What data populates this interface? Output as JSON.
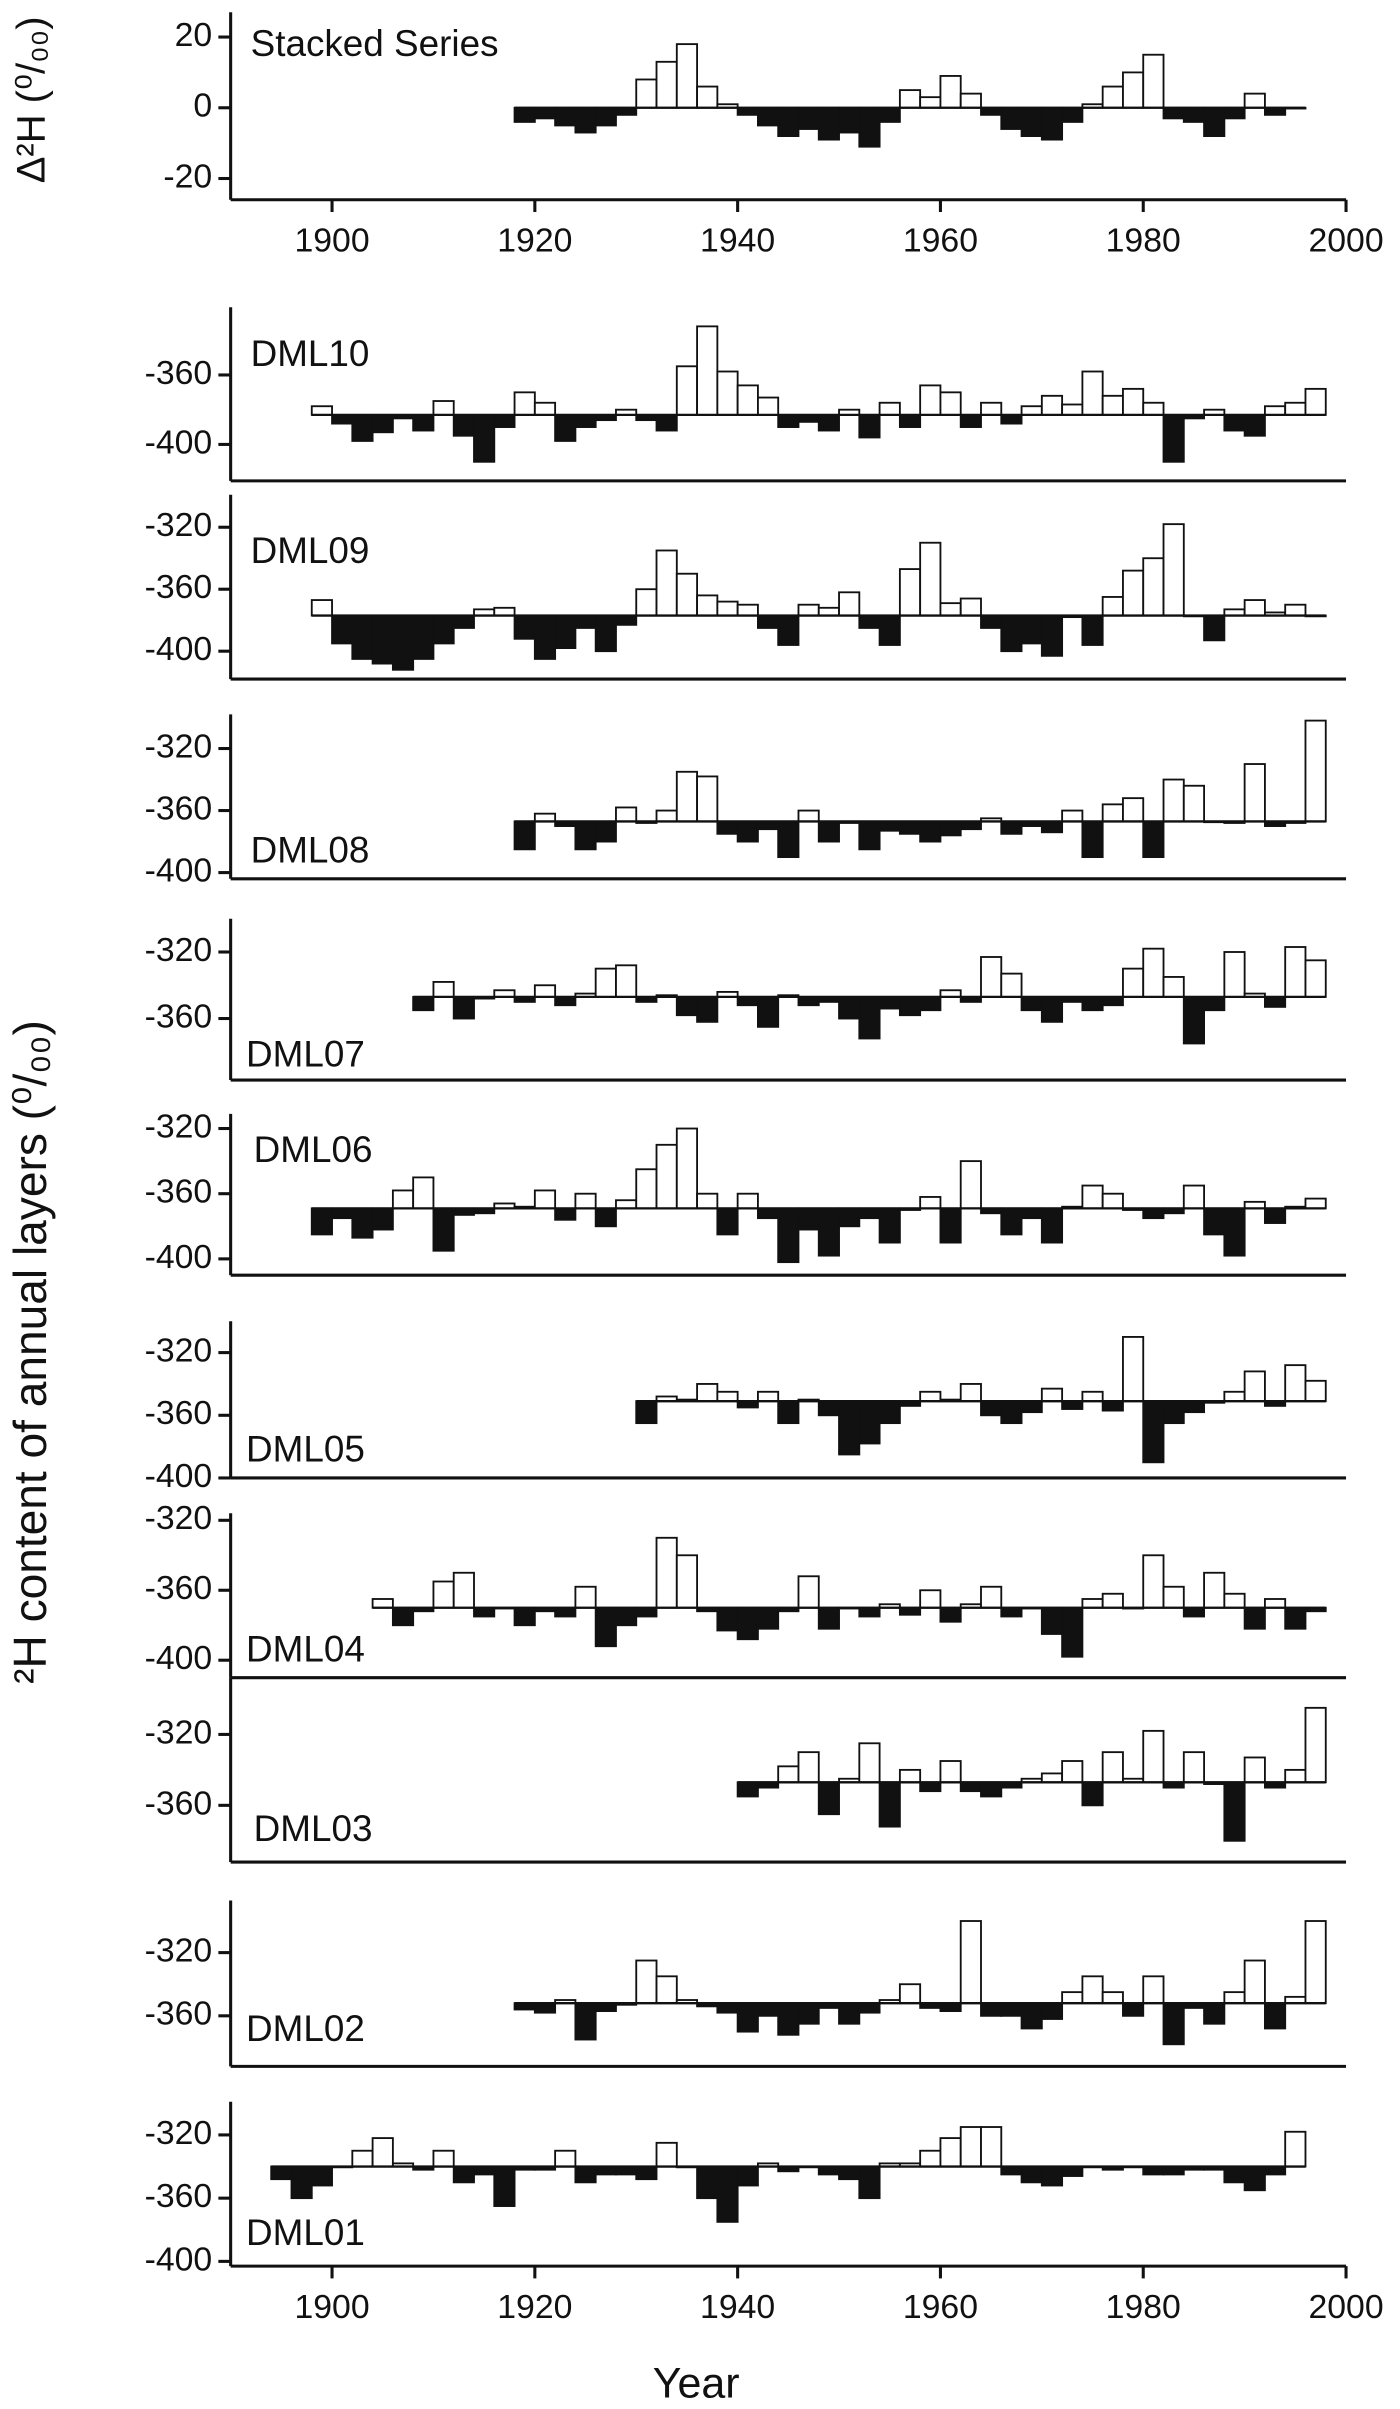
{
  "ylabel": "²H content of annual layers  (⁰/₀₀)",
  "chart_data": [
    {
      "type": "bar",
      "title": "Stacked Series",
      "ylabel": "Δ²H (⁰/₀₀)",
      "baseline": 0,
      "xlim": [
        1890,
        2000
      ],
      "ylim": [
        -26,
        27
      ],
      "yticks": [
        -20,
        0,
        20
      ],
      "xticks": [
        1900,
        1920,
        1940,
        1960,
        1980,
        2000
      ],
      "x": [
        1918,
        1920,
        1922,
        1924,
        1926,
        1928,
        1930,
        1932,
        1934,
        1936,
        1938,
        1940,
        1942,
        1944,
        1946,
        1948,
        1950,
        1952,
        1954,
        1956,
        1958,
        1960,
        1962,
        1964,
        1966,
        1968,
        1970,
        1972,
        1974,
        1976,
        1978,
        1980,
        1982,
        1984,
        1986,
        1988,
        1990,
        1992,
        1994
      ],
      "values": [
        -4,
        -3,
        -5,
        -7,
        -5,
        -2,
        8,
        13,
        18,
        6,
        1,
        -2,
        -5,
        -8,
        -6,
        -9,
        -7,
        -11,
        -4,
        5,
        3,
        9,
        4,
        -2,
        -6,
        -8,
        -9,
        -4,
        1,
        6,
        10,
        15,
        -3,
        -4,
        -8,
        -3,
        4,
        -2,
        0
      ]
    },
    {
      "type": "bar",
      "title": "DML10",
      "baseline": -383,
      "xlim": [
        1890,
        2000
      ],
      "ylim": [
        -421,
        -321
      ],
      "yticks": [
        -360,
        -400
      ],
      "x": [
        1898,
        1900,
        1902,
        1904,
        1906,
        1908,
        1910,
        1912,
        1914,
        1916,
        1918,
        1920,
        1922,
        1924,
        1926,
        1928,
        1930,
        1932,
        1934,
        1936,
        1938,
        1940,
        1942,
        1944,
        1946,
        1948,
        1950,
        1952,
        1954,
        1956,
        1958,
        1960,
        1962,
        1964,
        1966,
        1968,
        1970,
        1972,
        1974,
        1976,
        1978,
        1980,
        1982,
        1984,
        1986,
        1988,
        1990,
        1992,
        1994,
        1996
      ],
      "values": [
        -378,
        -388,
        -398,
        -393,
        -385,
        -392,
        -375,
        -395,
        -410,
        -390,
        -370,
        -376,
        -398,
        -390,
        -386,
        -380,
        -386,
        -392,
        -355,
        -332,
        -358,
        -366,
        -373,
        -390,
        -387,
        -392,
        -380,
        -396,
        -376,
        -390,
        -366,
        -370,
        -390,
        -376,
        -388,
        -378,
        -372,
        -377,
        -358,
        -372,
        -368,
        -376,
        -410,
        -385,
        -380,
        -392,
        -395,
        -378,
        -376,
        -368
      ]
    },
    {
      "type": "bar",
      "title": "DML09",
      "baseline": -377,
      "xlim": [
        1890,
        2000
      ],
      "ylim": [
        -418,
        -299
      ],
      "yticks": [
        -320,
        -360,
        -400
      ],
      "x": [
        1898,
        1900,
        1902,
        1904,
        1906,
        1908,
        1910,
        1912,
        1914,
        1916,
        1918,
        1920,
        1922,
        1924,
        1926,
        1928,
        1930,
        1932,
        1934,
        1936,
        1938,
        1940,
        1942,
        1944,
        1946,
        1948,
        1950,
        1952,
        1954,
        1956,
        1958,
        1960,
        1962,
        1964,
        1966,
        1968,
        1970,
        1972,
        1974,
        1976,
        1978,
        1980,
        1982,
        1984,
        1986,
        1988,
        1990,
        1992,
        1994,
        1996
      ],
      "values": [
        -367,
        -395,
        -405,
        -408,
        -412,
        -405,
        -395,
        -385,
        -373,
        -372,
        -392,
        -405,
        -398,
        -385,
        -400,
        -383,
        -360,
        -335,
        -350,
        -364,
        -368,
        -370,
        -385,
        -396,
        -370,
        -372,
        -362,
        -385,
        -396,
        -347,
        -330,
        -369,
        -366,
        -385,
        -400,
        -395,
        -403,
        -378,
        -396,
        -365,
        -348,
        -340,
        -318,
        -377,
        -393,
        -373,
        -367,
        -375,
        -370,
        -377
      ]
    },
    {
      "type": "bar",
      "title": "DML08",
      "baseline": -367,
      "xlim": [
        1890,
        2000
      ],
      "ylim": [
        -404,
        -298
      ],
      "yticks": [
        -320,
        -360,
        -400
      ],
      "x": [
        1918,
        1920,
        1922,
        1924,
        1926,
        1928,
        1930,
        1932,
        1934,
        1936,
        1938,
        1940,
        1942,
        1944,
        1946,
        1948,
        1950,
        1952,
        1954,
        1956,
        1958,
        1960,
        1962,
        1964,
        1966,
        1968,
        1970,
        1972,
        1974,
        1976,
        1978,
        1980,
        1982,
        1984,
        1986,
        1988,
        1990,
        1992,
        1994,
        1996
      ],
      "values": [
        -385,
        -362,
        -370,
        -385,
        -380,
        -358,
        -368,
        -360,
        -335,
        -338,
        -375,
        -380,
        -372,
        -390,
        -360,
        -380,
        -368,
        -385,
        -373,
        -375,
        -380,
        -376,
        -372,
        -365,
        -375,
        -370,
        -374,
        -360,
        -390,
        -356,
        -352,
        -390,
        -340,
        -344,
        -367,
        -368,
        -330,
        -370,
        -368,
        -302
      ]
    },
    {
      "type": "bar",
      "title": "DML07",
      "baseline": -347,
      "xlim": [
        1890,
        2000
      ],
      "ylim": [
        -397,
        -300
      ],
      "yticks": [
        -320,
        -360
      ],
      "x": [
        1908,
        1910,
        1912,
        1914,
        1916,
        1918,
        1920,
        1922,
        1924,
        1926,
        1928,
        1930,
        1932,
        1934,
        1936,
        1938,
        1940,
        1942,
        1944,
        1946,
        1948,
        1950,
        1952,
        1954,
        1956,
        1958,
        1960,
        1962,
        1964,
        1966,
        1968,
        1970,
        1972,
        1974,
        1976,
        1978,
        1980,
        1982,
        1984,
        1986,
        1988,
        1990,
        1992,
        1994,
        1996
      ],
      "values": [
        -355,
        -338,
        -360,
        -348,
        -343,
        -350,
        -340,
        -352,
        -345,
        -330,
        -328,
        -350,
        -346,
        -358,
        -362,
        -344,
        -352,
        -365,
        -346,
        -352,
        -350,
        -360,
        -372,
        -354,
        -358,
        -355,
        -343,
        -350,
        -323,
        -333,
        -355,
        -362,
        -350,
        -355,
        -352,
        -330,
        -318,
        -335,
        -375,
        -355,
        -320,
        -345,
        -353,
        -317,
        -325
      ]
    },
    {
      "type": "bar",
      "title": "DML06",
      "baseline": -369,
      "xlim": [
        1890,
        2000
      ],
      "ylim": [
        -410,
        -311
      ],
      "yticks": [
        -320,
        -360,
        -400
      ],
      "x": [
        1898,
        1900,
        1902,
        1904,
        1906,
        1908,
        1910,
        1912,
        1914,
        1916,
        1918,
        1920,
        1922,
        1924,
        1926,
        1928,
        1930,
        1932,
        1934,
        1936,
        1938,
        1940,
        1942,
        1944,
        1946,
        1948,
        1950,
        1952,
        1954,
        1956,
        1958,
        1960,
        1962,
        1964,
        1966,
        1968,
        1970,
        1972,
        1974,
        1976,
        1978,
        1980,
        1982,
        1984,
        1986,
        1988,
        1990,
        1992,
        1994,
        1996
      ],
      "values": [
        -385,
        -375,
        -387,
        -382,
        -358,
        -350,
        -395,
        -373,
        -372,
        -366,
        -368,
        -358,
        -376,
        -360,
        -380,
        -364,
        -345,
        -330,
        -320,
        -360,
        -385,
        -360,
        -375,
        -402,
        -382,
        -398,
        -380,
        -375,
        -390,
        -370,
        -362,
        -390,
        -340,
        -372,
        -385,
        -375,
        -390,
        -368,
        -355,
        -360,
        -370,
        -375,
        -372,
        -355,
        -385,
        -398,
        -365,
        -378,
        -368,
        -363
      ]
    },
    {
      "type": "bar",
      "title": "DML05",
      "baseline": -351,
      "xlim": [
        1890,
        2000
      ],
      "ylim": [
        -400,
        -300
      ],
      "yticks": [
        -320,
        -360,
        -400
      ],
      "x": [
        1930,
        1932,
        1934,
        1936,
        1938,
        1940,
        1942,
        1944,
        1946,
        1948,
        1950,
        1952,
        1954,
        1956,
        1958,
        1960,
        1962,
        1964,
        1966,
        1968,
        1970,
        1972,
        1974,
        1976,
        1978,
        1980,
        1982,
        1984,
        1986,
        1988,
        1990,
        1992,
        1994,
        1996
      ],
      "values": [
        -365,
        -348,
        -350,
        -340,
        -345,
        -355,
        -345,
        -365,
        -350,
        -360,
        -385,
        -378,
        -365,
        -354,
        -345,
        -350,
        -340,
        -360,
        -365,
        -358,
        -343,
        -356,
        -345,
        -357,
        -310,
        -390,
        -365,
        -358,
        -352,
        -345,
        -332,
        -354,
        -328,
        -338
      ]
    },
    {
      "type": "bar",
      "title": "DML04",
      "baseline": -370,
      "xlim": [
        1890,
        2000
      ],
      "ylim": [
        -410,
        -316
      ],
      "yticks": [
        -320,
        -360,
        -400
      ],
      "x": [
        1904,
        1906,
        1908,
        1910,
        1912,
        1914,
        1916,
        1918,
        1920,
        1922,
        1924,
        1926,
        1928,
        1930,
        1932,
        1934,
        1936,
        1938,
        1940,
        1942,
        1944,
        1946,
        1948,
        1950,
        1952,
        1954,
        1956,
        1958,
        1960,
        1962,
        1964,
        1966,
        1968,
        1970,
        1972,
        1974,
        1976,
        1978,
        1980,
        1982,
        1984,
        1986,
        1988,
        1990,
        1992,
        1994,
        1996
      ],
      "values": [
        -365,
        -380,
        -372,
        -355,
        -350,
        -375,
        -370,
        -380,
        -372,
        -375,
        -358,
        -392,
        -380,
        -375,
        -330,
        -340,
        -372,
        -383,
        -388,
        -382,
        -372,
        -352,
        -382,
        -370,
        -375,
        -368,
        -374,
        -360,
        -378,
        -368,
        -358,
        -375,
        -370,
        -385,
        -398,
        -365,
        -362,
        -370,
        -340,
        -358,
        -375,
        -350,
        -362,
        -382,
        -365,
        -382,
        -372
      ]
    },
    {
      "type": "bar",
      "title": "DML03",
      "baseline": -347,
      "xlim": [
        1890,
        2000
      ],
      "ylim": [
        -392,
        -288
      ],
      "yticks": [
        -320,
        -360
      ],
      "x": [
        1940,
        1942,
        1944,
        1946,
        1948,
        1950,
        1952,
        1954,
        1956,
        1958,
        1960,
        1962,
        1964,
        1966,
        1968,
        1970,
        1972,
        1974,
        1976,
        1978,
        1980,
        1982,
        1984,
        1986,
        1988,
        1990,
        1992,
        1994,
        1996
      ],
      "values": [
        -355,
        -350,
        -338,
        -330,
        -365,
        -345,
        -325,
        -372,
        -340,
        -352,
        -335,
        -352,
        -355,
        -350,
        -345,
        -342,
        -335,
        -360,
        -330,
        -345,
        -318,
        -350,
        -330,
        -348,
        -380,
        -333,
        -350,
        -340,
        -305
      ]
    },
    {
      "type": "bar",
      "title": "DML02",
      "baseline": -352,
      "xlim": [
        1890,
        2000
      ],
      "ylim": [
        -392,
        -287
      ],
      "yticks": [
        -320,
        -360
      ],
      "x": [
        1918,
        1920,
        1922,
        1924,
        1926,
        1928,
        1930,
        1932,
        1934,
        1936,
        1938,
        1940,
        1942,
        1944,
        1946,
        1948,
        1950,
        1952,
        1954,
        1956,
        1958,
        1960,
        1962,
        1964,
        1966,
        1968,
        1970,
        1972,
        1974,
        1976,
        1978,
        1980,
        1982,
        1984,
        1986,
        1988,
        1990,
        1992,
        1994,
        1996
      ],
      "values": [
        -356,
        -358,
        -350,
        -375,
        -357,
        -353,
        -325,
        -335,
        -350,
        -354,
        -358,
        -370,
        -360,
        -372,
        -365,
        -355,
        -365,
        -358,
        -350,
        -340,
        -355,
        -357,
        -300,
        -360,
        -360,
        -368,
        -362,
        -345,
        -335,
        -345,
        -360,
        -335,
        -378,
        -355,
        -365,
        -345,
        -325,
        -368,
        -348,
        -300
      ]
    },
    {
      "type": "bar",
      "title": "DML01",
      "xlabel": "Year",
      "baseline": -340,
      "xlim": [
        1890,
        2000
      ],
      "ylim": [
        -403,
        -299
      ],
      "yticks": [
        -320,
        -360,
        -400
      ],
      "xticks": [
        1900,
        1920,
        1940,
        1960,
        1980,
        2000
      ],
      "x": [
        1894,
        1896,
        1898,
        1900,
        1902,
        1904,
        1906,
        1908,
        1910,
        1912,
        1914,
        1916,
        1918,
        1920,
        1922,
        1924,
        1926,
        1928,
        1930,
        1932,
        1934,
        1936,
        1938,
        1940,
        1942,
        1944,
        1946,
        1948,
        1950,
        1952,
        1954,
        1956,
        1958,
        1960,
        1962,
        1964,
        1966,
        1968,
        1970,
        1972,
        1974,
        1976,
        1978,
        1980,
        1982,
        1984,
        1986,
        1988,
        1990,
        1992,
        1994
      ],
      "values": [
        -348,
        -360,
        -352,
        -340,
        -330,
        -322,
        -338,
        -342,
        -330,
        -350,
        -345,
        -365,
        -342,
        -342,
        -330,
        -350,
        -345,
        -345,
        -348,
        -325,
        -340,
        -360,
        -375,
        -352,
        -338,
        -343,
        -340,
        -345,
        -348,
        -360,
        -338,
        -338,
        -330,
        -322,
        -315,
        -315,
        -345,
        -350,
        -352,
        -346,
        -340,
        -342,
        -340,
        -345,
        -345,
        -342,
        -342,
        -350,
        -355,
        -345,
        -318
      ]
    }
  ]
}
